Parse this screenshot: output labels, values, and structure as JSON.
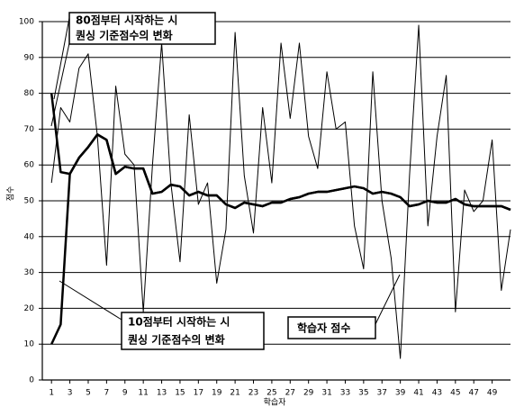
{
  "chart_data": {
    "type": "line",
    "x_label": "학습자",
    "y_label": "점수",
    "x": [
      1,
      2,
      3,
      4,
      5,
      6,
      7,
      8,
      9,
      10,
      11,
      12,
      13,
      14,
      15,
      16,
      17,
      18,
      19,
      20,
      21,
      22,
      23,
      24,
      25,
      26,
      27,
      28,
      29,
      30,
      31,
      32,
      33,
      34,
      35,
      36,
      37,
      38,
      39,
      40,
      41,
      42,
      43,
      44,
      45,
      46,
      47,
      48,
      49,
      50,
      51
    ],
    "xlim": [
      0,
      51
    ],
    "xticks": [
      1,
      3,
      5,
      7,
      9,
      11,
      13,
      15,
      17,
      19,
      21,
      23,
      25,
      27,
      29,
      31,
      33,
      35,
      37,
      39,
      41,
      43,
      45,
      47,
      49
    ],
    "ylim": [
      0,
      100
    ],
    "yticks": [
      0,
      10,
      20,
      30,
      40,
      50,
      60,
      70,
      80,
      90,
      100
    ],
    "grid": true,
    "series": [
      {
        "name": "학습자 점수",
        "color": "#000000",
        "width": 1,
        "values": [
          55,
          76,
          72,
          87,
          91,
          68,
          32,
          82,
          63,
          60,
          19,
          60,
          94,
          55,
          33,
          74,
          49,
          55,
          27,
          42,
          97,
          57,
          41,
          76,
          55,
          94,
          73,
          94,
          68,
          59,
          86,
          70,
          72,
          43,
          31,
          86,
          50,
          34,
          6,
          57,
          99,
          43,
          68,
          85,
          19,
          53,
          47,
          50,
          67,
          25,
          42
        ]
      },
      {
        "name": "80점부터 시작하는 시퀀싱 기준점수의 변화",
        "color": "#000000",
        "width": 2.5,
        "values": [
          80,
          58,
          57.5,
          62,
          65,
          68.5,
          67,
          57.5,
          59.5,
          59,
          59,
          52,
          52.5,
          54.5,
          54,
          51.5,
          52.5,
          51.5,
          51.5,
          49,
          48,
          49.5,
          49,
          48.5,
          49.5,
          49.5,
          50.5,
          51,
          52,
          52.5,
          52.5,
          53,
          53.5,
          54,
          53.5,
          52,
          52.5,
          52,
          51,
          48.5,
          49,
          50,
          49.5,
          49.5,
          50.5,
          49,
          48.5,
          48.5,
          48.5,
          48.5,
          47.5
        ]
      },
      {
        "name": "10점부터 시작하는 시퀀싱 기준점수의 변화",
        "color": "#000000",
        "width": 2.5,
        "values": [
          10,
          15.5,
          57.5,
          62,
          65,
          68.5,
          67,
          57.5,
          59.5,
          59,
          59,
          52,
          52.5,
          54.5,
          54,
          51.5,
          52.5,
          51.5,
          51.5,
          49,
          48,
          49.5,
          49,
          48.5,
          49.5,
          49.5,
          50.5,
          51,
          52,
          52.5,
          52.5,
          53,
          53.5,
          54,
          53.5,
          52,
          52.5,
          52,
          51,
          48.5,
          49,
          50,
          49.5,
          49.5,
          50.5,
          49,
          48.5,
          48.5,
          48.5,
          48.5,
          47.5
        ]
      }
    ],
    "annotations": [
      {
        "lines": [
          "80점부터 시작하는 시",
          "퀀싱 기준점수의 변화"
        ]
      },
      {
        "lines": [
          "10점부터 시작하는 시",
          "퀀싱 기준점수의 변화"
        ]
      },
      {
        "lines": [
          "학습자 점수"
        ]
      }
    ]
  }
}
